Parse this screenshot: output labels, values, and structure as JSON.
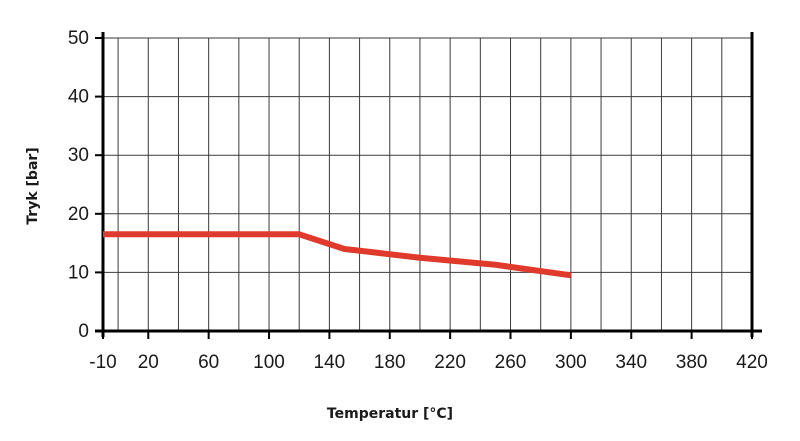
{
  "chart_data": {
    "type": "line",
    "title": "",
    "xlabel": "Temperatur [°C]",
    "ylabel": "Tryk [bar]",
    "xlim": [
      -10,
      420
    ],
    "ylim": [
      0,
      50
    ],
    "x_tick_labels": [
      "-10",
      "20",
      "60",
      "100",
      "140",
      "180",
      "220",
      "260",
      "300",
      "340",
      "380",
      "420"
    ],
    "x_tick_values": [
      -10,
      20,
      60,
      100,
      140,
      180,
      220,
      260,
      300,
      340,
      380,
      420
    ],
    "y_tick_labels": [
      "0",
      "10",
      "20",
      "30",
      "40",
      "50"
    ],
    "y_tick_values": [
      0,
      10,
      20,
      30,
      40,
      50
    ],
    "x_grid_step": 20,
    "grid": true,
    "series": [
      {
        "color": "#e03a2c",
        "x": [
          -10,
          120,
          150,
          200,
          250,
          300
        ],
        "y": [
          16.5,
          16.5,
          14,
          12.5,
          11.3,
          9.5
        ]
      }
    ]
  }
}
